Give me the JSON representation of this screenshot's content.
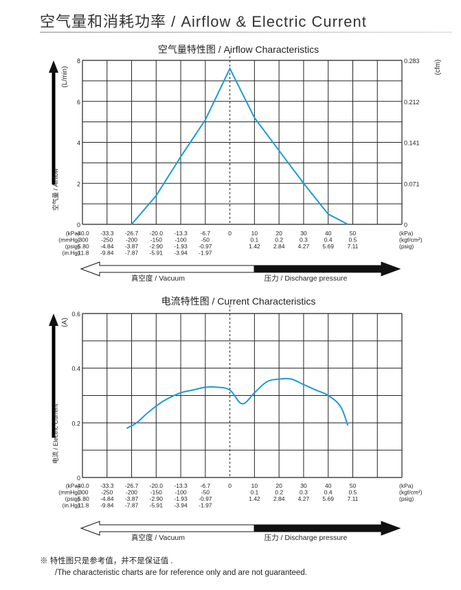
{
  "title": "空气量和消耗功率 / Airflow & Electric Current",
  "footnote": {
    "line1": "※ 特性图只是参考值，并不是保证值 .",
    "line2": "/The characteristic charts are for reference only and are not guaranteed."
  },
  "colors": {
    "curve": "#1a9ad8",
    "grid": "#222222",
    "text": "#222222"
  },
  "x_axis": {
    "kpa": [
      "-40.0",
      "-33.3",
      "-26.7",
      "-20.0",
      "-13.3",
      "-6.7",
      "0",
      "10",
      "20",
      "30",
      "40",
      "50"
    ],
    "vacuum_rows": [
      {
        "label": "(mmHg)",
        "values": [
          "-300",
          "-250",
          "-200",
          "-150",
          "-100",
          "-50"
        ]
      },
      {
        "label": "(psig)",
        "values": [
          "-5.80",
          "-4.84",
          "-3.87",
          "-2.90",
          "-1.93",
          "-0.97"
        ]
      },
      {
        "label": "(in.Hg)",
        "values": [
          "-11.8",
          "-9.84",
          "-7.87",
          "-5.91",
          "-3.94",
          "-1.97"
        ]
      }
    ],
    "pressure_rows": [
      {
        "label": "(kgf/cm²)",
        "values": [
          "0.1",
          "0.2",
          "0.3",
          "0.4",
          "0.5"
        ]
      },
      {
        "label": "(psig)",
        "values": [
          "1.42",
          "2.84",
          "4.27",
          "5.69",
          "7.11"
        ]
      }
    ],
    "kpa_label": "(kPa)",
    "left_labels": [
      "(kPa)",
      "(mmHg)",
      "(psig)",
      "(in.Hg)"
    ],
    "right_labels": [
      "(kPa)",
      "(kgf/cm²)",
      "(psig)"
    ],
    "vacuum_label": "真空度 / Vacuum",
    "pressure_label": "压力 / Discharge pressure"
  },
  "chart_data": [
    {
      "type": "line",
      "title": "空气量特性图 / Airflow Characteristics",
      "ylabel": "空气量 / Airflow",
      "ylabel_unit": "(L/min)",
      "y2label_unit": "(cfm)",
      "ylim": [
        0,
        8
      ],
      "yticks": [
        "0",
        "2",
        "4",
        "6",
        "8"
      ],
      "y2ticks": [
        "0",
        "0.071",
        "0.141",
        "0.212",
        "0.283"
      ],
      "x_categories": [
        "-40.0",
        "-33.3",
        "-26.7",
        "-20.0",
        "-13.3",
        "-6.7",
        "0",
        "10",
        "20",
        "30",
        "40",
        "50"
      ],
      "series": [
        {
          "x": [
            2,
            3,
            4,
            5,
            6,
            7,
            8,
            9,
            10,
            10.8
          ],
          "y": [
            0,
            1.4,
            3.3,
            5.1,
            7.6,
            5.2,
            3.6,
            2.0,
            0.5,
            0
          ]
        }
      ]
    },
    {
      "type": "line",
      "title": "电流特性图 / Current Characteristics",
      "ylabel": "电流 / Electric Current",
      "ylabel_unit": "(A)",
      "ylim": [
        0,
        0.6
      ],
      "yticks": [
        "0",
        "0.2",
        "0.4",
        "0.6"
      ],
      "x_categories": [
        "-40.0",
        "-33.3",
        "-26.7",
        "-20.0",
        "-13.3",
        "-6.7",
        "0",
        "10",
        "20",
        "30",
        "40",
        "50"
      ],
      "series": [
        {
          "x": [
            1.8,
            2.2,
            2.7,
            3.3,
            4.0,
            4.5,
            5.0,
            5.5,
            6.0,
            6.5,
            7.0,
            7.5,
            8.0,
            8.5,
            9.0,
            9.5,
            10.0,
            10.5,
            10.8
          ],
          "y": [
            0.18,
            0.2,
            0.24,
            0.28,
            0.31,
            0.32,
            0.33,
            0.33,
            0.32,
            0.27,
            0.31,
            0.35,
            0.36,
            0.36,
            0.34,
            0.32,
            0.3,
            0.26,
            0.19
          ]
        }
      ]
    }
  ]
}
